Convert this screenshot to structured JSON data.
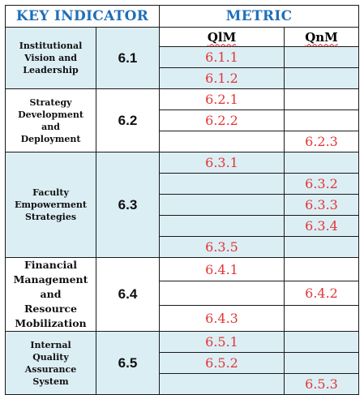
{
  "headers": {
    "key_indicator": "KEY INDICATOR",
    "metric": "METRIC",
    "qlm": "QlM",
    "qnm": "QnM"
  },
  "indicators": [
    {
      "code": "6.1",
      "name_lines": [
        "Institutional",
        "Vision and",
        "Leadership"
      ],
      "rows": [
        {
          "qlm": "6.1.1",
          "qnm": ""
        },
        {
          "qlm": "6.1.2",
          "qnm": ""
        }
      ]
    },
    {
      "code": "6.2",
      "name_lines": [
        "Strategy",
        "Development",
        "and",
        "Deployment"
      ],
      "rows": [
        {
          "qlm": "6.2.1",
          "qnm": ""
        },
        {
          "qlm": "6.2.2",
          "qnm": ""
        },
        {
          "qlm": "",
          "qnm": "6.2.3"
        }
      ]
    },
    {
      "code": "6.3",
      "name_lines": [
        "Faculty",
        "Empowerment",
        "Strategies"
      ],
      "rows": [
        {
          "qlm": "6.3.1",
          "qnm": ""
        },
        {
          "qlm": "",
          "qnm": "6.3.2"
        },
        {
          "qlm": "",
          "qnm": "6.3.3"
        },
        {
          "qlm": "",
          "qnm": "6.3.4"
        },
        {
          "qlm": "6.3.5",
          "qnm": ""
        }
      ]
    },
    {
      "code": "6.4",
      "name_lines": [
        "Financial",
        "Management",
        "and",
        "Resource",
        "Mobilization"
      ],
      "rows": [
        {
          "qlm": "6.4.1",
          "qnm": ""
        },
        {
          "qlm": "",
          "qnm": "6.4.2"
        },
        {
          "qlm": "6.4.3",
          "qnm": ""
        }
      ]
    },
    {
      "code": "6.5",
      "name_lines": [
        "Internal",
        "Quality",
        "Assurance",
        "System"
      ],
      "rows": [
        {
          "qlm": "6.5.1",
          "qnm": ""
        },
        {
          "qlm": "6.5.2",
          "qnm": ""
        },
        {
          "qlm": "",
          "qnm": "6.5.3"
        }
      ]
    }
  ],
  "colors": {
    "header_text": "#1f6fb8",
    "metric_text": "#e23636",
    "shade": "#dbeef4"
  }
}
